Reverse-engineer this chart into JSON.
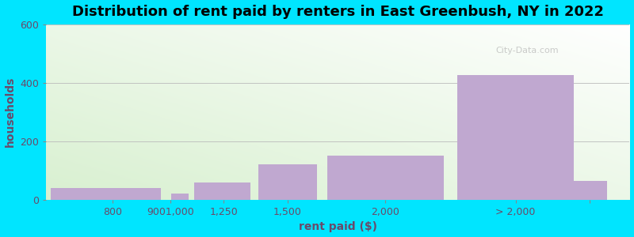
{
  "title": "Distribution of rent paid by renters in East Greenbush, NY in 2022",
  "xlabel": "rent paid ($)",
  "ylabel": "households",
  "bar_left_edges": [
    400,
    800,
    900,
    1000,
    1250,
    1500,
    2000
  ],
  "bar_values": [
    40,
    20,
    60,
    120,
    150,
    425,
    65
  ],
  "bar_color": "#c0a8d0",
  "bg_color_outer": "#00e5ff",
  "bg_color_inner_topleft": "#d8f0d0",
  "bg_color_inner_topright": "#ffffff",
  "ylim": [
    0,
    600
  ],
  "xlim": [
    400,
    2600
  ],
  "yticks": [
    0,
    200,
    400,
    600
  ],
  "xtick_labels": [
    "800",
    "9001,000",
    "1,250",
    "1,500",
    "2,000",
    "> 2,000",
    ""
  ],
  "title_fontsize": 13,
  "axis_label_fontsize": 10,
  "tick_fontsize": 9
}
